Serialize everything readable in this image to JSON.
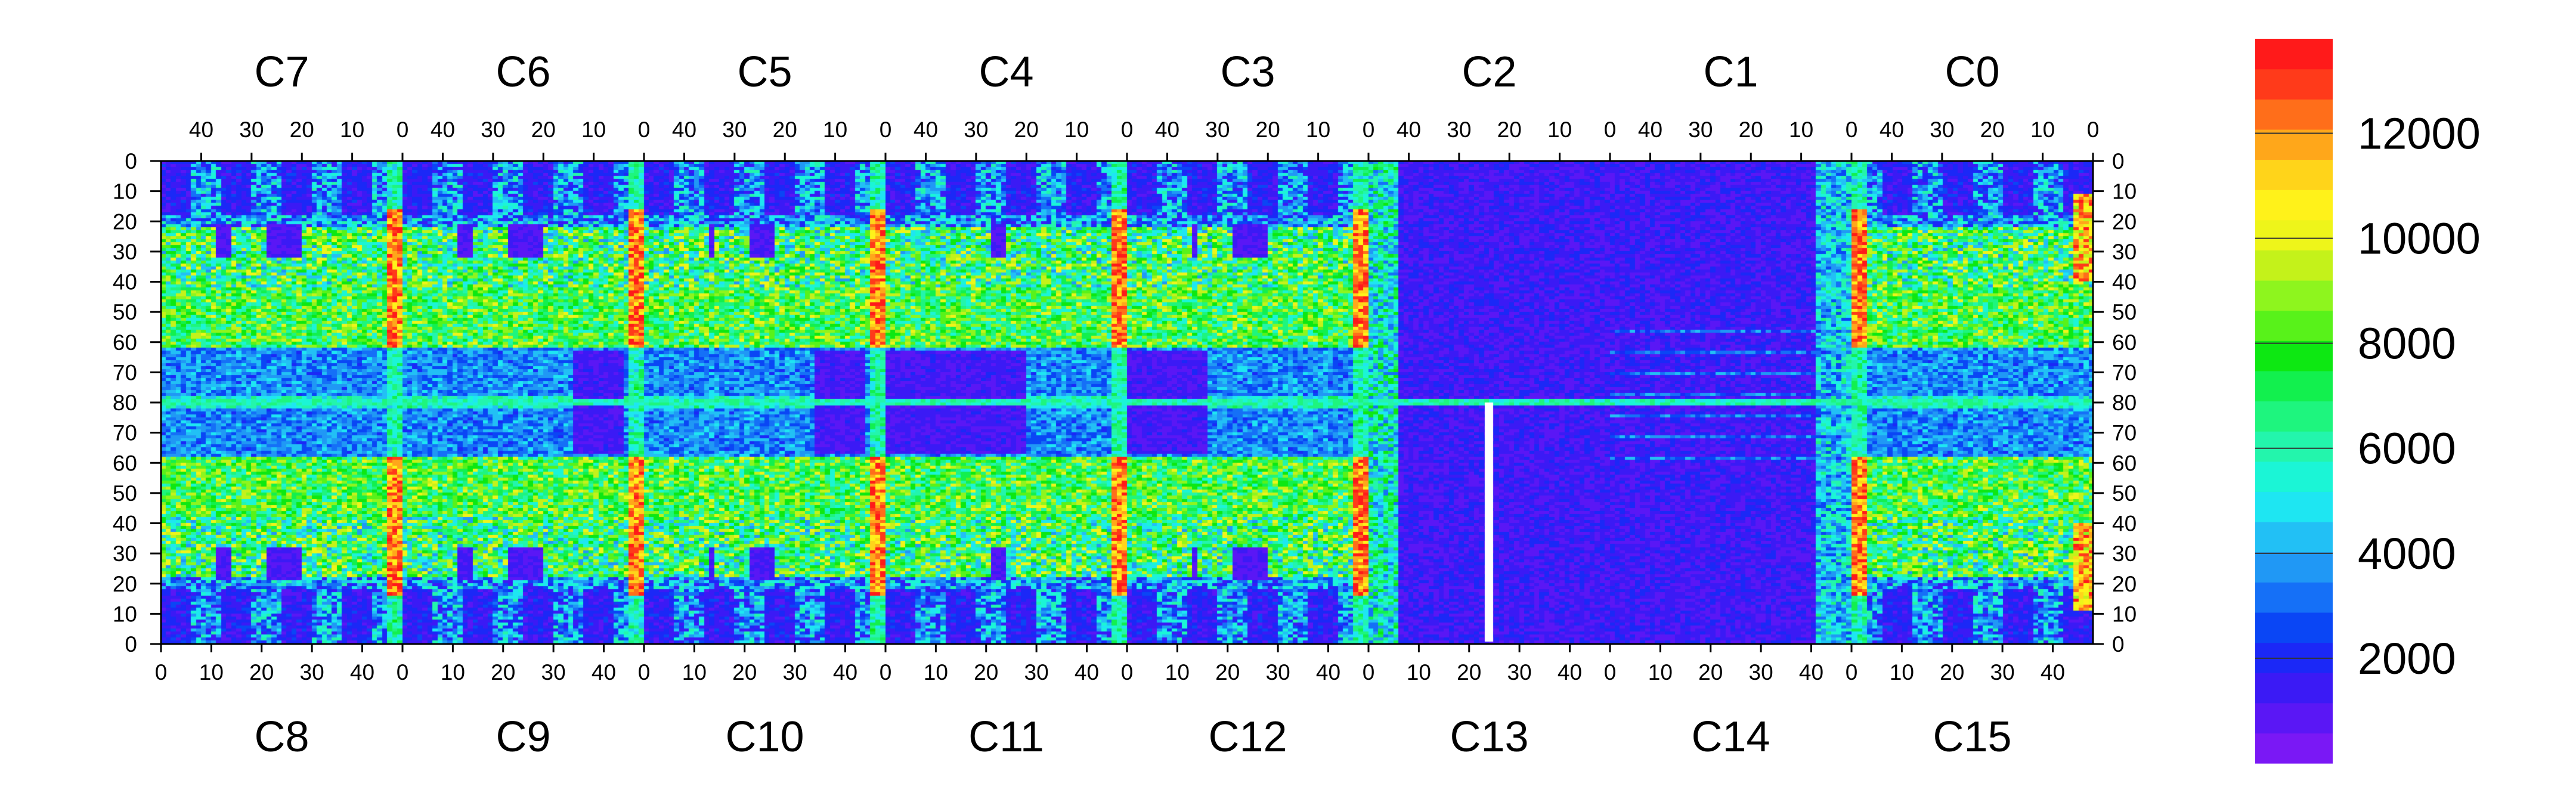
{
  "chart_data": {
    "type": "heatmap",
    "title": "",
    "colorscale": {
      "ticks": [
        2000,
        4000,
        6000,
        8000,
        10000,
        12000
      ],
      "range": [
        0,
        13800
      ],
      "colors": [
        "#7a18f5",
        "#5a17f5",
        "#3b1af5",
        "#1b28f7",
        "#0a46f5",
        "#1570f7",
        "#2098f5",
        "#22c0f5",
        "#1ee6f2",
        "#1bf5d6",
        "#23f5ac",
        "#1ef57e",
        "#12f04e",
        "#0de812",
        "#58f21a",
        "#8ef51e",
        "#c4f21a",
        "#eef51a",
        "#fff21a",
        "#ffd41a",
        "#ffa71a",
        "#ff6e1a",
        "#ff3a1a",
        "#ff1a1a"
      ]
    },
    "channels_top": [
      "C7",
      "C6",
      "C5",
      "C4",
      "C3",
      "C2",
      "C1",
      "C0"
    ],
    "channels_bottom": [
      "C8",
      "C9",
      "C10",
      "C11",
      "C12",
      "C13",
      "C14",
      "C15"
    ],
    "x_ticks_top": [
      "40",
      "30",
      "20",
      "10",
      "0"
    ],
    "x_ticks_bottom": [
      "0",
      "10",
      "20",
      "30",
      "40"
    ],
    "y_ticks": [
      "0",
      "10",
      "20",
      "30",
      "40",
      "50",
      "60",
      "70",
      "80",
      "70",
      "60",
      "50",
      "40",
      "30",
      "20",
      "10",
      "0"
    ],
    "y_range": [
      0,
      160
    ],
    "pixels_per_channel": [
      48,
      160
    ]
  }
}
